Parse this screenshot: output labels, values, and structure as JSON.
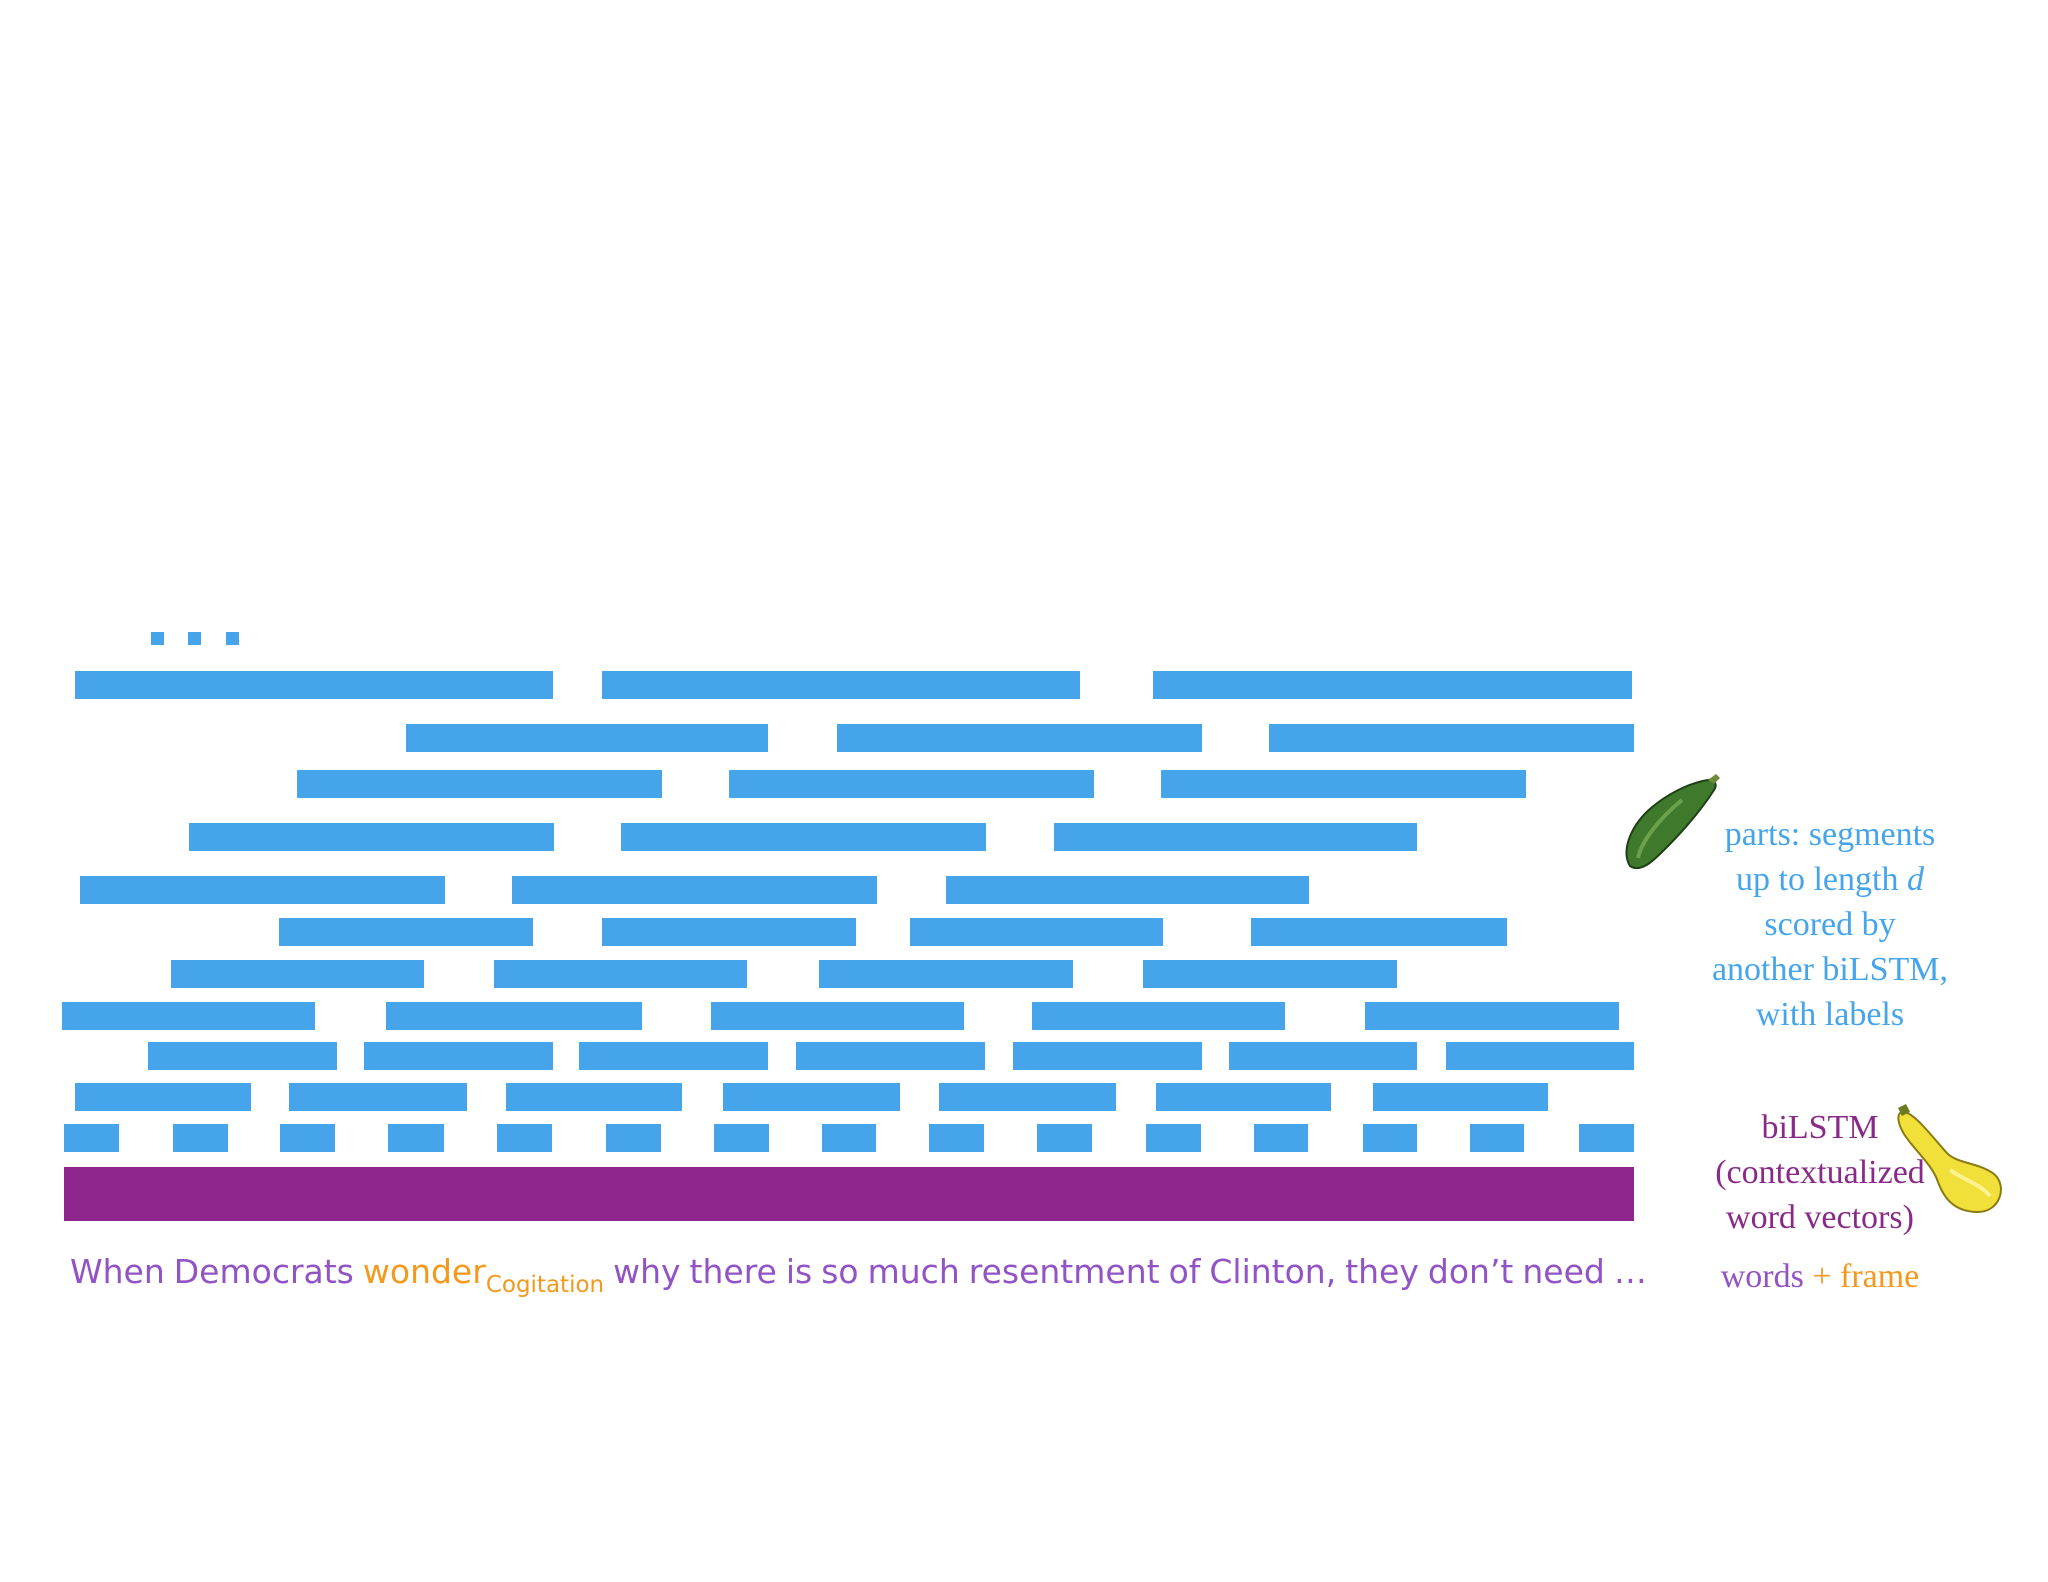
{
  "colors": {
    "segment": "#45a4ea",
    "bilstm": "#8e268e",
    "sentence_text": "#9253c5",
    "frame_text": "#f39a1e",
    "bilstm_label": "#8a2a88"
  },
  "ellipsis_dots": "...",
  "sentence": {
    "before": [
      "When",
      "Democrats"
    ],
    "target": "wonder",
    "frame_label": "Cogitation",
    "after": [
      "why",
      "there",
      "is",
      "so",
      "much",
      "resentment",
      "of",
      "Clinton,",
      "they",
      "don’t",
      "need",
      "…"
    ]
  },
  "parts_label": {
    "line1": "parts:  segments",
    "line2_prefix": "up to length ",
    "line2_var": "d",
    "line3": "scored  by",
    "line4": "another  biLSTM,",
    "line5": "with labels"
  },
  "bilstm_label": {
    "line1": "biLSTM",
    "line2": "(contextualized",
    "line3": "word vectors)"
  },
  "legend": {
    "words": "words",
    "plus": "+",
    "frame": "frame"
  },
  "icons": {
    "zucchini": "zucchini-icon",
    "yellow_squash": "yellow-squash-icon"
  }
}
